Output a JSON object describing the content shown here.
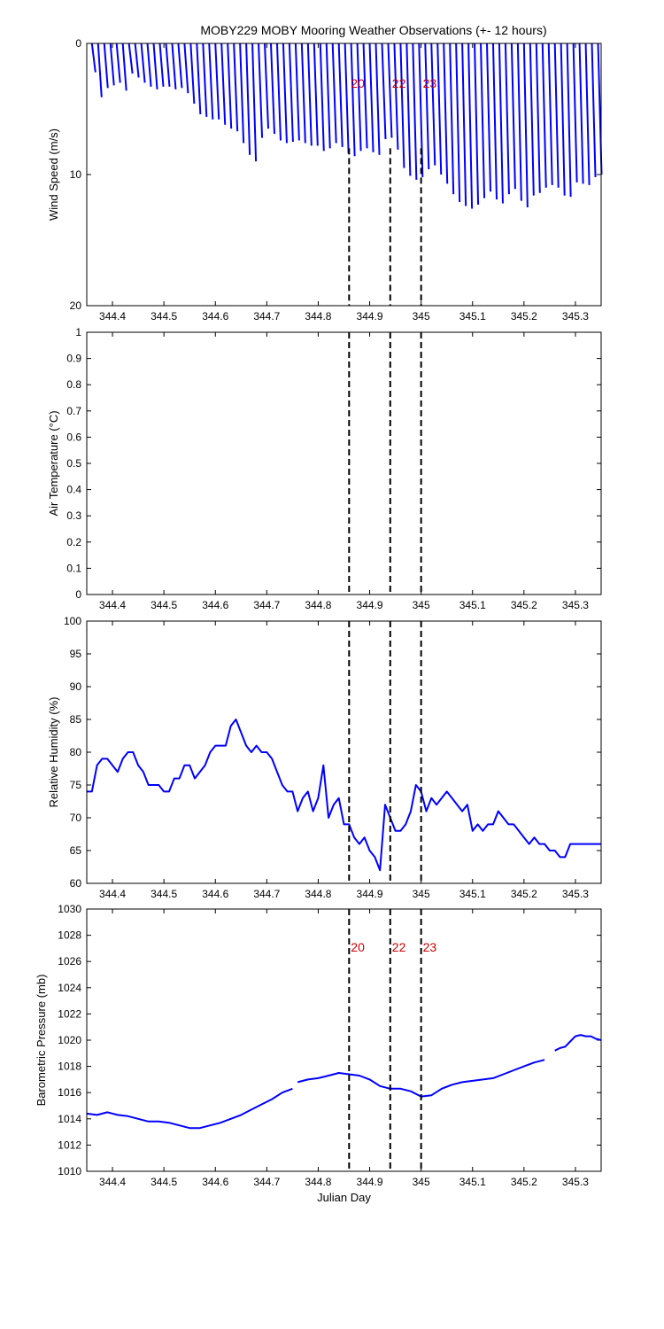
{
  "figure": {
    "title": "MOBY229 MOBY Mooring Weather Observations (+- 12 hours)"
  },
  "chart_data": [
    {
      "id": "wind",
      "type": "line",
      "ylabel": "Wind Speed (m/s)",
      "xlabel": "",
      "xlim": [
        344.35,
        345.35
      ],
      "ylim": [
        0,
        20
      ],
      "y_reversed": true,
      "xticks": [
        344.4,
        344.5,
        344.6,
        344.7,
        344.8,
        344.9,
        345.0,
        345.1,
        345.2,
        345.3
      ],
      "xtick_labels": [
        "344.4",
        "344.5",
        "344.6",
        "344.7",
        "344.8",
        "344.9",
        "345",
        "345.1",
        "345.2",
        "345.3"
      ],
      "yticks": [
        0,
        10,
        20
      ],
      "ytick_labels": [
        "0",
        "10",
        "20"
      ],
      "markers": [
        {
          "x": 344.86,
          "label": "20"
        },
        {
          "x": 344.94,
          "label": "22"
        },
        {
          "x": 345.0,
          "label": "23"
        }
      ],
      "series": [
        {
          "style": "wind-stick",
          "color": "#0000ff",
          "x": [
            344.36,
            344.372,
            344.384,
            344.396,
            344.408,
            344.42,
            344.432,
            344.444,
            344.456,
            344.468,
            344.48,
            344.492,
            344.504,
            344.516,
            344.528,
            344.54,
            344.552,
            344.564,
            344.576,
            344.588,
            344.6,
            344.612,
            344.624,
            344.636,
            344.648,
            344.66,
            344.672,
            344.684,
            344.696,
            344.708,
            344.72,
            344.732,
            344.744,
            344.756,
            344.768,
            344.78,
            344.792,
            344.804,
            344.816,
            344.828,
            344.84,
            344.852,
            344.864,
            344.876,
            344.888,
            344.9,
            344.912,
            344.924,
            344.936,
            344.948,
            344.96,
            344.972,
            344.984,
            344.996,
            345.008,
            345.02,
            345.032,
            345.044,
            345.056,
            345.068,
            345.08,
            345.092,
            345.104,
            345.116,
            345.128,
            345.14,
            345.152,
            345.164,
            345.176,
            345.188,
            345.2,
            345.212,
            345.224,
            345.236,
            345.248,
            345.26,
            345.272,
            345.284,
            345.296,
            345.308,
            345.32,
            345.332,
            345.344
          ],
          "speed": [
            2.2,
            4.1,
            3.4,
            3.2,
            3.0,
            3.6,
            2.3,
            2.6,
            3.0,
            3.3,
            3.5,
            3.3,
            3.3,
            3.5,
            3.4,
            3.8,
            4.6,
            5.4,
            5.6,
            5.8,
            5.8,
            6.2,
            6.5,
            6.7,
            7.6,
            8.5,
            9.0,
            7.2,
            6.5,
            6.9,
            7.4,
            7.6,
            7.5,
            7.4,
            7.6,
            7.8,
            7.8,
            8.2,
            8.0,
            7.6,
            7.9,
            8.4,
            8.6,
            8.2,
            8.0,
            8.3,
            8.5,
            7.3,
            7.2,
            8.1,
            9.5,
            10.1,
            10.4,
            10.2,
            9.6,
            9.3,
            10.0,
            10.7,
            11.5,
            12.1,
            12.4,
            12.6,
            12.3,
            11.8,
            11.3,
            11.9,
            12.2,
            11.5,
            11.1,
            12.0,
            12.5,
            11.6,
            11.4,
            11.0,
            10.8,
            11.0,
            11.6,
            11.7,
            10.6,
            10.7,
            10.8,
            10.2,
            10.0
          ]
        }
      ]
    },
    {
      "id": "airtemp",
      "type": "line",
      "ylabel": "Air Temperature (°C)",
      "xlabel": "",
      "xlim": [
        344.35,
        345.35
      ],
      "ylim": [
        0,
        1
      ],
      "xticks": [
        344.4,
        344.5,
        344.6,
        344.7,
        344.8,
        344.9,
        345.0,
        345.1,
        345.2,
        345.3
      ],
      "xtick_labels": [
        "344.4",
        "344.5",
        "344.6",
        "344.7",
        "344.8",
        "344.9",
        "345",
        "345.1",
        "345.2",
        "345.3"
      ],
      "yticks": [
        0,
        0.1,
        0.2,
        0.3,
        0.4,
        0.5,
        0.6,
        0.7,
        0.8,
        0.9,
        1
      ],
      "ytick_labels": [
        "0",
        "0.1",
        "0.2",
        "0.3",
        "0.4",
        "0.5",
        "0.6",
        "0.7",
        "0.8",
        "0.9",
        "1"
      ],
      "markers": [
        {
          "x": 344.86,
          "label": ""
        },
        {
          "x": 344.94,
          "label": ""
        },
        {
          "x": 345.0,
          "label": ""
        }
      ],
      "series": []
    },
    {
      "id": "humidity",
      "type": "line",
      "ylabel": "Relative Humidity (%)",
      "xlabel": "",
      "xlim": [
        344.35,
        345.35
      ],
      "ylim": [
        60,
        100
      ],
      "xticks": [
        344.4,
        344.5,
        344.6,
        344.7,
        344.8,
        344.9,
        345.0,
        345.1,
        345.2,
        345.3
      ],
      "xtick_labels": [
        "344.4",
        "344.5",
        "344.6",
        "344.7",
        "344.8",
        "344.9",
        "345",
        "345.1",
        "345.2",
        "345.3"
      ],
      "yticks": [
        60,
        65,
        70,
        75,
        80,
        85,
        90,
        95,
        100
      ],
      "ytick_labels": [
        "60",
        "65",
        "70",
        "75",
        "80",
        "85",
        "90",
        "95",
        "100"
      ],
      "markers": [
        {
          "x": 344.86,
          "label": ""
        },
        {
          "x": 344.94,
          "label": ""
        },
        {
          "x": 345.0,
          "label": ""
        }
      ],
      "series": [
        {
          "color": "#0000ff",
          "segments": [
            {
              "x": [
                344.35,
                344.36,
                344.37,
                344.38,
                344.39,
                344.4,
                344.41,
                344.42,
                344.43,
                344.44,
                344.45,
                344.46,
                344.47,
                344.48,
                344.49,
                344.5,
                344.51,
                344.52,
                344.53,
                344.54,
                344.55,
                344.56,
                344.57,
                344.58,
                344.59,
                344.6,
                344.61,
                344.62,
                344.63,
                344.64,
                344.65,
                344.66,
                344.67,
                344.68,
                344.69,
                344.7,
                344.71,
                344.72,
                344.73,
                344.74,
                344.75,
                344.76,
                344.77,
                344.78,
                344.79,
                344.8,
                344.81,
                344.82,
                344.83,
                344.84,
                344.85,
                344.86,
                344.87,
                344.88,
                344.89,
                344.9,
                344.91,
                344.92,
                344.93,
                344.94,
                344.945,
                344.95,
                344.96,
                344.97,
                344.98,
                344.99,
                345.0,
                345.01,
                345.02,
                345.03,
                345.04,
                345.05,
                345.06,
                345.07,
                345.08,
                345.09,
                345.1,
                345.11,
                345.12,
                345.13,
                345.14,
                345.15,
                345.16,
                345.17,
                345.18,
                345.19,
                345.2,
                345.21,
                345.22,
                345.23,
                345.24,
                345.25,
                345.26,
                345.27,
                345.28,
                345.29,
                345.3,
                345.31,
                345.32,
                345.33,
                345.34,
                345.35
              ],
              "y": [
                74,
                74,
                78,
                79,
                79,
                78,
                77,
                79,
                80,
                80,
                78,
                77,
                75,
                75,
                75,
                74,
                74,
                76,
                76,
                78,
                78,
                76,
                77,
                78,
                80,
                81,
                81,
                81,
                84,
                85,
                83,
                81,
                80,
                81,
                80,
                80,
                79,
                77,
                75,
                74,
                74,
                71,
                73,
                74,
                71,
                73,
                78,
                70,
                72,
                73,
                69,
                69,
                67,
                66,
                67,
                65,
                64,
                62,
                72,
                70,
                69,
                68,
                68,
                69,
                71,
                75,
                74,
                71,
                73,
                72,
                73,
                74,
                73,
                72,
                71,
                72,
                68,
                69,
                68,
                69,
                69,
                71,
                70,
                69,
                69,
                68,
                67,
                66,
                67,
                66,
                66,
                65,
                65,
                64,
                64,
                66,
                66,
                66,
                66,
                66,
                66,
                66
              ]
            }
          ]
        }
      ]
    },
    {
      "id": "pressure",
      "type": "line",
      "ylabel": "Barometric Pressure (mb)",
      "xlabel": "Julian Day",
      "xlim": [
        344.35,
        345.35
      ],
      "ylim": [
        1010,
        1030
      ],
      "xticks": [
        344.4,
        344.5,
        344.6,
        344.7,
        344.8,
        344.9,
        345.0,
        345.1,
        345.2,
        345.3
      ],
      "xtick_labels": [
        "344.4",
        "344.5",
        "344.6",
        "344.7",
        "344.8",
        "344.9",
        "345",
        "345.1",
        "345.2",
        "345.3"
      ],
      "yticks": [
        1010,
        1012,
        1014,
        1016,
        1018,
        1020,
        1022,
        1024,
        1026,
        1028,
        1030
      ],
      "ytick_labels": [
        "1010",
        "1012",
        "1014",
        "1016",
        "1018",
        "1020",
        "1022",
        "1024",
        "1026",
        "1028",
        "1030"
      ],
      "markers": [
        {
          "x": 344.86,
          "label": "20"
        },
        {
          "x": 344.94,
          "label": "22"
        },
        {
          "x": 345.0,
          "label": "23"
        }
      ],
      "series": [
        {
          "color": "#0000ff",
          "segments": [
            {
              "x": [
                344.35,
                344.37,
                344.39,
                344.41,
                344.43,
                344.45,
                344.47,
                344.49,
                344.51,
                344.53,
                344.55,
                344.57,
                344.59,
                344.61,
                344.63,
                344.65,
                344.67,
                344.69,
                344.71,
                344.73,
                344.75
              ],
              "y": [
                1014.4,
                1014.3,
                1014.5,
                1014.3,
                1014.2,
                1014.0,
                1013.8,
                1013.8,
                1013.7,
                1013.5,
                1013.3,
                1013.3,
                1013.5,
                1013.7,
                1014.0,
                1014.3,
                1014.7,
                1015.1,
                1015.5,
                1016.0,
                1016.3
              ]
            },
            {
              "x": [
                344.76,
                344.78,
                344.8,
                344.82,
                344.84,
                344.86,
                344.88,
                344.9,
                344.92,
                344.94,
                344.96,
                344.98,
                345.0,
                345.02,
                345.04,
                345.06,
                345.08,
                345.1,
                345.12,
                345.14,
                345.16,
                345.18,
                345.2,
                345.22,
                345.24
              ],
              "y": [
                1016.8,
                1017.0,
                1017.1,
                1017.3,
                1017.5,
                1017.4,
                1017.3,
                1017.0,
                1016.5,
                1016.3,
                1016.3,
                1016.1,
                1015.7,
                1015.8,
                1016.3,
                1016.6,
                1016.8,
                1016.9,
                1017.0,
                1017.1,
                1017.4,
                1017.7,
                1018.0,
                1018.3,
                1018.5
              ]
            },
            {
              "x": [
                345.26,
                345.27,
                345.28,
                345.29,
                345.3,
                345.31,
                345.32,
                345.33,
                345.34,
                345.35
              ],
              "y": [
                1019.2,
                1019.4,
                1019.5,
                1019.9,
                1020.3,
                1020.4,
                1020.3,
                1020.3,
                1020.1,
                1020.0
              ]
            }
          ]
        }
      ]
    }
  ]
}
